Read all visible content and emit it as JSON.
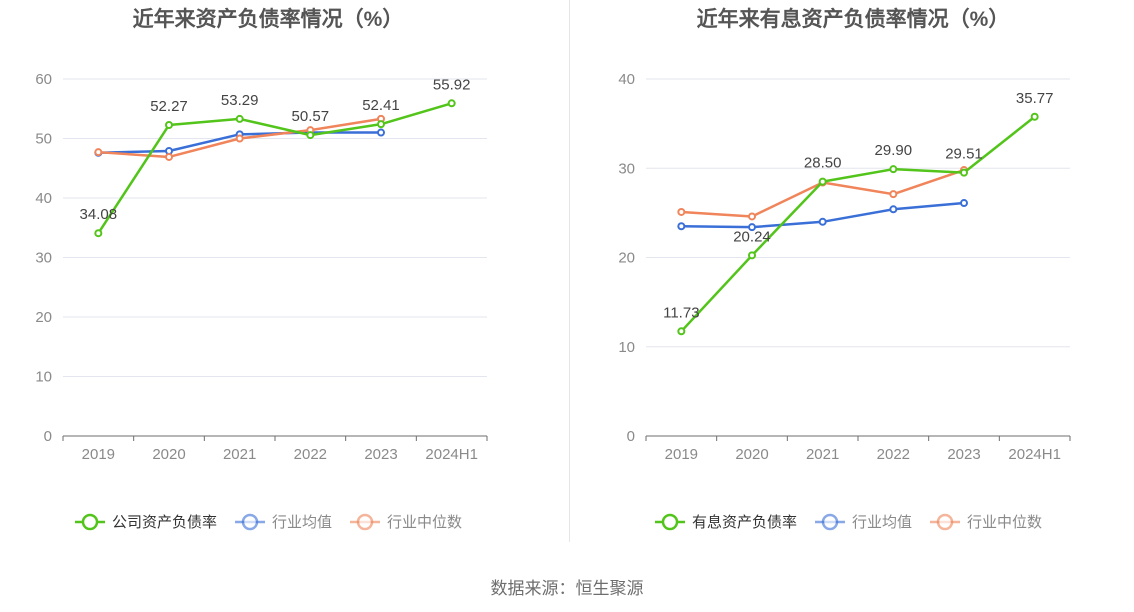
{
  "chart_data": [
    {
      "type": "line",
      "title": "近年来资产负债率情况（%）",
      "categories": [
        "2019",
        "2020",
        "2021",
        "2022",
        "2023",
        "2024H1"
      ],
      "ylim": [
        0,
        60
      ],
      "yticks": [
        0,
        10,
        20,
        30,
        40,
        50,
        60
      ],
      "grid": true,
      "legend_position": "bottom",
      "series": [
        {
          "name": "公司资产负债率",
          "color": "#52c41a",
          "values": [
            34.08,
            52.27,
            53.29,
            50.57,
            52.41,
            55.92
          ],
          "labels": [
            "34.08",
            "52.27",
            "53.29",
            "50.57",
            "52.41",
            "55.92"
          ]
        },
        {
          "name": "行业均值",
          "color": "#3a6fd8",
          "values": [
            47.6,
            47.9,
            50.7,
            51.0,
            51.0,
            null
          ]
        },
        {
          "name": "行业中位数",
          "color": "#f0845a",
          "values": [
            47.7,
            46.9,
            50.0,
            51.4,
            53.3,
            null
          ]
        }
      ]
    },
    {
      "type": "line",
      "title": "近年来有息资产负债率情况（%）",
      "categories": [
        "2019",
        "2020",
        "2021",
        "2022",
        "2023",
        "2024H1"
      ],
      "ylim": [
        0,
        40
      ],
      "yticks": [
        0,
        10,
        20,
        30,
        40
      ],
      "grid": true,
      "legend_position": "bottom",
      "series": [
        {
          "name": "有息资产负债率",
          "color": "#52c41a",
          "values": [
            11.73,
            20.24,
            28.5,
            29.9,
            29.51,
            35.77
          ],
          "labels": [
            "11.73",
            "20.24",
            "28.50",
            "29.90",
            "29.51",
            "35.77"
          ]
        },
        {
          "name": "行业均值",
          "color": "#3a6fd8",
          "values": [
            23.5,
            23.4,
            24.0,
            25.4,
            26.1,
            null
          ]
        },
        {
          "name": "行业中位数",
          "color": "#f0845a",
          "values": [
            25.1,
            24.6,
            28.4,
            27.1,
            29.8,
            null
          ]
        }
      ]
    }
  ],
  "footer": {
    "source": "数据来源：恒生聚源"
  }
}
